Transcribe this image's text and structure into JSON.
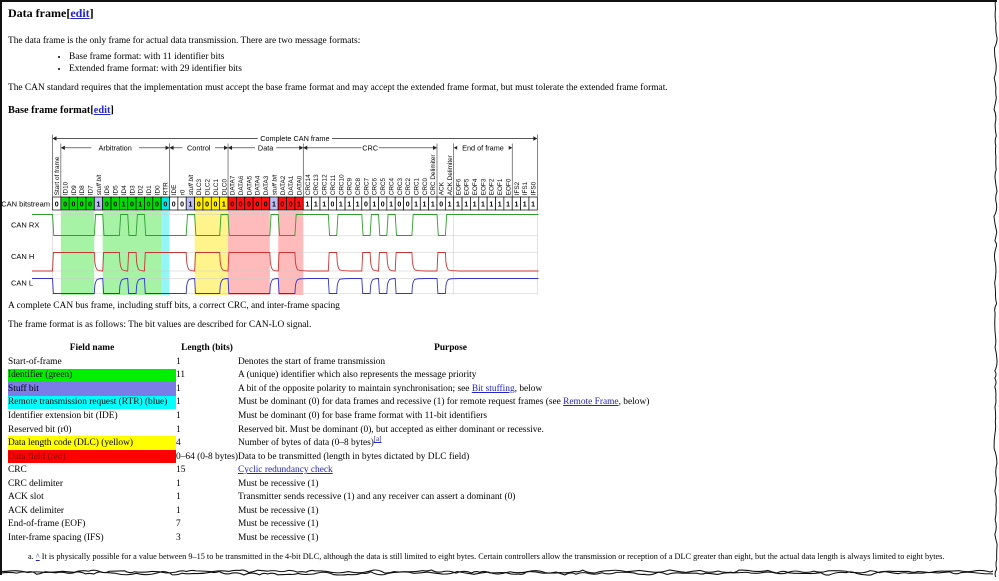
{
  "page": {
    "heading": "Data frame",
    "edit_label": "edit",
    "intro": "The data frame is the only frame for actual data transmission. There are two message formats:",
    "bullets": [
      "Base frame format: with 11 identifier bits",
      "Extended frame format: with 29 identifier bits"
    ],
    "standard_note": "The CAN standard requires that the implementation must accept the base frame format and may accept the extended frame format, but must tolerate the extended frame format.",
    "subheading": "Base frame format",
    "caption": "A complete CAN bus frame, including stuff bits, a correct CRC, and inter-frame spacing",
    "format_note": "The frame format is as follows: The bit values are described for CAN-LO signal."
  },
  "diagram": {
    "title": "Complete CAN frame",
    "bitstream_label": "CAN bitstream",
    "signals": [
      "CAN RX",
      "CAN H",
      "CAN L"
    ],
    "sections": [
      {
        "label": "Arbitration",
        "from": 1,
        "to": 14
      },
      {
        "label": "Control",
        "from": 14,
        "to": 21
      },
      {
        "label": "Data",
        "from": 21,
        "to": 30
      },
      {
        "label": "CRC",
        "from": 30,
        "to": 46
      },
      {
        "label": "End of frame",
        "from": 48,
        "to": 55
      }
    ],
    "boundaries": [
      1,
      14,
      21,
      30,
      46,
      48,
      55
    ],
    "bit_labels": [
      "Start of frame",
      "ID10",
      "ID9",
      "ID8",
      "ID7",
      "stuff bit",
      "ID6",
      "ID5",
      "ID4",
      "ID3",
      "ID2",
      "ID1",
      "ID0",
      "RTR",
      "IDE",
      "r0",
      "stuff bit",
      "DLC3",
      "DLC2",
      "DLC1",
      "DLC0",
      "DATA7",
      "DATA6",
      "DATA5",
      "DATA4",
      "DATA3",
      "stuff bit",
      "DATA2",
      "DATA1",
      "DATA0",
      "CRC14",
      "CRC13",
      "CRC12",
      "CRC11",
      "CRC10",
      "CRC9",
      "CRC8",
      "CRC7",
      "CRC6",
      "CRC5",
      "CRC4",
      "CRC3",
      "CRC2",
      "CRC1",
      "CRC0",
      "CRC Delimiter",
      "ACK",
      "ACK Delimiter",
      "EOF6",
      "EOF5",
      "EOF4",
      "EOF3",
      "EOF2",
      "EOF1",
      "EOF0",
      "IFS2",
      "IFS1",
      "IFS0"
    ],
    "bit_values": [
      0,
      0,
      0,
      0,
      0,
      1,
      0,
      0,
      1,
      0,
      1,
      0,
      0,
      0,
      0,
      0,
      1,
      0,
      0,
      0,
      1,
      0,
      0,
      0,
      0,
      0,
      1,
      0,
      0,
      1,
      1,
      1,
      1,
      0,
      1,
      1,
      1,
      0,
      1,
      0,
      1,
      0,
      0,
      1,
      1,
      1,
      0,
      1,
      1,
      1,
      1,
      1,
      1,
      1,
      1,
      1,
      1,
      1
    ],
    "bit_colors": [
      "w",
      "g",
      "g",
      "g",
      "g",
      "s",
      "g",
      "g",
      "g",
      "g",
      "g",
      "g",
      "g",
      "c",
      "w",
      "w",
      "s",
      "y",
      "y",
      "y",
      "y",
      "r",
      "r",
      "r",
      "r",
      "r",
      "s",
      "r",
      "r",
      "r",
      "w",
      "w",
      "w",
      "w",
      "w",
      "w",
      "w",
      "w",
      "w",
      "w",
      "w",
      "w",
      "w",
      "w",
      "w",
      "w",
      "w",
      "w",
      "w",
      "w",
      "w",
      "w",
      "w",
      "w",
      "w",
      "w",
      "w",
      "w"
    ],
    "cell_fill": {
      "w": "#ffffff",
      "g": "#00dc00",
      "s": "#bdbdf7",
      "c": "#00e8e8",
      "y": "#ffee00",
      "r": "#ff1111"
    },
    "band_fill": {
      "g": "rgba(0,220,0,0.35)",
      "c": "rgba(0,230,230,0.42)",
      "y": "rgba(255,230,0,0.45)",
      "r": "rgba(255,60,60,0.35)"
    },
    "bands": [
      {
        "from": 1,
        "to": 5,
        "color": "g"
      },
      {
        "from": 6,
        "to": 13,
        "color": "g"
      },
      {
        "from": 13,
        "to": 14,
        "color": "c"
      },
      {
        "from": 17,
        "to": 21,
        "color": "y"
      },
      {
        "from": 21,
        "to": 26,
        "color": "r"
      },
      {
        "from": 27,
        "to": 30,
        "color": "r"
      }
    ],
    "trace_colors": {
      "rx": "#2f9e2f",
      "h": "#cc3333",
      "l": "#3333cc"
    }
  },
  "table": {
    "headers": [
      "Field name",
      "Length (bits)",
      "Purpose"
    ],
    "rows": [
      {
        "field": "Start-of-frame",
        "bg": null,
        "length": "1",
        "purpose": [
          {
            "text": "Denotes the start of frame transmission"
          }
        ]
      },
      {
        "field": "Identifier (green)",
        "bg": "#00ef00",
        "length": "11",
        "purpose": [
          {
            "text": "A (unique) identifier which also represents the message priority"
          }
        ]
      },
      {
        "field": "Stuff bit",
        "bg": "#7c7ce8",
        "length": "1",
        "purpose": [
          {
            "text": "A bit of the opposite polarity to maintain synchronisation; see "
          },
          {
            "link": "Bit stuffing"
          },
          {
            "text": ", below"
          }
        ]
      },
      {
        "field": "Remote transmission request (RTR) (blue)",
        "bg": "#00ffff",
        "length": "1",
        "purpose": [
          {
            "text": "Must be dominant (0) for data frames and recessive (1) for remote request frames (see "
          },
          {
            "link": "Remote Frame"
          },
          {
            "text": ", below)"
          }
        ]
      },
      {
        "field": "Identifier extension bit (IDE)",
        "bg": null,
        "length": "1",
        "purpose": [
          {
            "text": "Must be dominant (0) for base frame format with 11-bit identifiers"
          }
        ]
      },
      {
        "field": "Reserved bit (r0)",
        "bg": null,
        "length": "1",
        "purpose": [
          {
            "text": "Reserved bit. Must be dominant (0), but accepted as either dominant or recessive."
          }
        ]
      },
      {
        "field": "Data length code (DLC) (yellow)",
        "bg": "#ffff00",
        "length": "4",
        "purpose": [
          {
            "text": "Number of bytes of data (0–8 bytes)"
          },
          {
            "suplink": "[a]"
          }
        ]
      },
      {
        "field": "Data field (red)",
        "bg": "#ff0000",
        "fieldColor": "#8b0000",
        "length": "0–64 (0-8 bytes)",
        "purpose": [
          {
            "text": "Data to be transmitted (length in bytes dictated by DLC field)"
          }
        ]
      },
      {
        "field": "CRC",
        "bg": null,
        "length": "15",
        "purpose": [
          {
            "link": "Cyclic redundancy check"
          }
        ]
      },
      {
        "field": "CRC delimiter",
        "bg": null,
        "length": "1",
        "purpose": [
          {
            "text": "Must be recessive (1)"
          }
        ]
      },
      {
        "field": "ACK slot",
        "bg": null,
        "length": "1",
        "purpose": [
          {
            "text": "Transmitter sends recessive (1) and any receiver can assert a dominant (0)"
          }
        ]
      },
      {
        "field": "ACK delimiter",
        "bg": null,
        "length": "1",
        "purpose": [
          {
            "text": "Must be recessive (1)"
          }
        ]
      },
      {
        "field": "End-of-frame (EOF)",
        "bg": null,
        "length": "7",
        "purpose": [
          {
            "text": "Must be recessive (1)"
          }
        ]
      },
      {
        "field": "Inter-frame spacing (IFS)",
        "bg": null,
        "length": "3",
        "purpose": [
          {
            "text": "Must be recessive (1)"
          }
        ]
      }
    ]
  },
  "footnote": {
    "marker": "a.",
    "caret": "^",
    "text": "It is physically possible for a value between 9–15 to be transmitted in the 4-bit DLC, although the data is still limited to eight bytes. Certain controllers allow the transmission or reception of a DLC greater than eight, but the actual data length is always limited to eight bytes."
  }
}
